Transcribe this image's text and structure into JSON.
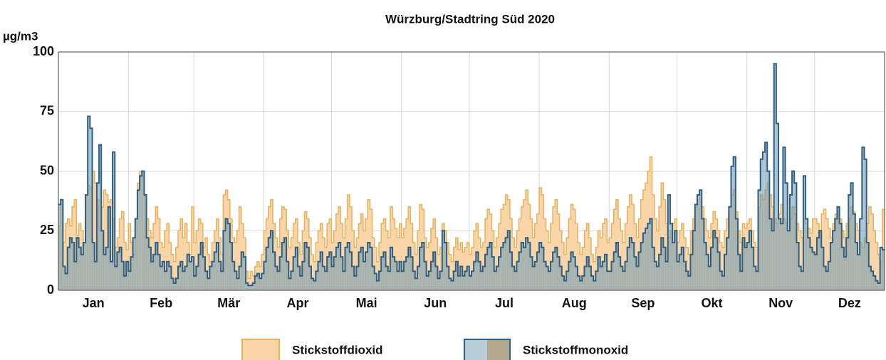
{
  "chart_data": {
    "type": "step-area",
    "title": "Würzburg/Stadtring Süd 2020",
    "y_unit": "µg/m3",
    "xlim": [
      0,
      366
    ],
    "xticks": [
      {
        "value": 0,
        "label": "Jan"
      },
      {
        "value": 31,
        "label": "Feb"
      },
      {
        "value": 60,
        "label": "Mär"
      },
      {
        "value": 91,
        "label": "Apr"
      },
      {
        "value": 121,
        "label": "Mai"
      },
      {
        "value": 152,
        "label": "Jun"
      },
      {
        "value": 182,
        "label": "Jul"
      },
      {
        "value": 213,
        "label": "Aug"
      },
      {
        "value": 244,
        "label": "Sep"
      },
      {
        "value": 274,
        "label": "Okt"
      },
      {
        "value": 305,
        "label": "Nov"
      },
      {
        "value": 335,
        "label": "Dez"
      }
    ],
    "ylim": [
      0,
      100
    ],
    "yticks": [
      0,
      25,
      50,
      75,
      100
    ],
    "grid": true,
    "legend": "bottom",
    "series": [
      {
        "name": "Stickstoffdioxid",
        "color": "#f9d5a8",
        "line_color": "#e6b25c",
        "values": [
          27,
          38,
          20,
          28,
          30,
          27,
          35,
          38,
          23,
          28,
          25,
          20,
          40,
          44,
          43,
          50,
          45,
          38,
          25,
          35,
          42,
          40,
          37,
          38,
          30,
          18,
          22,
          30,
          33,
          20,
          17,
          28,
          20,
          15,
          30,
          45,
          50,
          48,
          40,
          30,
          25,
          22,
          28,
          35,
          30,
          20,
          18,
          25,
          28,
          20,
          15,
          12,
          18,
          25,
          30,
          22,
          28,
          20,
          15,
          35,
          20,
          25,
          30,
          28,
          18,
          22,
          15,
          12,
          20,
          25,
          30,
          22,
          15,
          40,
          42,
          38,
          30,
          22,
          20,
          25,
          35,
          28,
          22,
          8,
          5,
          8,
          6,
          10,
          12,
          10,
          15,
          25,
          30,
          35,
          38,
          28,
          22,
          18,
          30,
          35,
          34,
          25,
          18,
          22,
          28,
          30,
          20,
          15,
          25,
          33,
          30,
          22,
          15,
          12,
          20,
          25,
          28,
          22,
          18,
          28,
          30,
          20,
          25,
          32,
          35,
          28,
          22,
          30,
          40,
          35,
          25,
          18,
          22,
          28,
          32,
          25,
          30,
          38,
          34,
          22,
          18,
          12,
          20,
          28,
          30,
          25,
          22,
          35,
          30,
          26,
          22,
          28,
          22,
          26,
          30,
          35,
          28,
          20,
          15,
          25,
          36,
          34,
          22,
          18,
          20,
          26,
          30,
          22,
          15,
          18,
          28,
          25,
          20,
          15,
          12,
          18,
          22,
          17,
          20,
          16,
          18,
          20,
          15,
          18,
          25,
          28,
          22,
          18,
          20,
          30,
          34,
          32,
          25,
          18,
          22,
          28,
          34,
          36,
          40,
          38,
          30,
          22,
          18,
          25,
          30,
          35,
          38,
          42,
          36,
          30,
          22,
          28,
          32,
          43,
          40,
          30,
          25,
          20,
          28,
          35,
          38,
          32,
          25,
          20,
          15,
          22,
          30,
          36,
          34,
          28,
          20,
          15,
          18,
          25,
          28,
          22,
          15,
          12,
          18,
          25,
          22,
          28,
          30,
          20,
          22,
          28,
          34,
          38,
          30,
          25,
          20,
          28,
          35,
          40,
          36,
          28,
          22,
          30,
          38,
          42,
          45,
          50,
          56,
          40,
          30,
          25,
          35,
          45,
          38,
          28,
          22,
          25,
          28,
          30,
          20,
          25,
          28,
          22,
          18,
          15,
          25,
          30,
          35,
          38,
          40,
          35,
          30,
          25,
          22,
          28,
          33,
          30,
          25,
          20,
          18,
          25,
          30,
          35,
          40,
          42,
          33,
          25,
          20,
          28,
          26,
          28,
          30,
          25,
          20,
          18,
          35,
          40,
          38,
          42,
          45,
          40,
          35,
          30,
          28,
          32,
          36,
          30,
          28,
          25,
          30,
          35,
          32,
          28,
          25,
          22,
          30,
          28,
          26,
          24,
          30,
          30,
          28,
          25,
          32,
          34,
          30,
          26,
          22,
          28,
          32,
          35,
          30,
          25,
          22,
          28,
          30,
          35,
          33,
          28,
          25,
          20,
          18,
          22,
          28,
          35,
          32,
          25,
          20,
          15,
          12,
          34
        ]
      },
      {
        "name": "Stickstoffmonoxid",
        "color": "#6f9bb5",
        "line_color": "#2d5f84",
        "values": [
          36,
          38,
          10,
          7,
          18,
          22,
          20,
          12,
          22,
          18,
          15,
          20,
          40,
          73,
          68,
          20,
          12,
          45,
          61,
          25,
          15,
          18,
          35,
          12,
          58,
          10,
          16,
          18,
          12,
          6,
          12,
          8,
          14,
          22,
          30,
          42,
          48,
          50,
          40,
          22,
          18,
          12,
          15,
          20,
          15,
          10,
          12,
          8,
          12,
          10,
          5,
          3,
          5,
          10,
          12,
          8,
          10,
          15,
          12,
          14,
          6,
          10,
          15,
          20,
          14,
          8,
          5,
          10,
          12,
          16,
          20,
          12,
          8,
          25,
          30,
          28,
          20,
          12,
          8,
          5,
          10,
          16,
          14,
          3,
          2,
          2,
          3,
          6,
          7,
          5,
          7,
          12,
          18,
          22,
          25,
          16,
          10,
          8,
          14,
          20,
          22,
          12,
          5,
          8,
          14,
          18,
          10,
          6,
          12,
          20,
          18,
          10,
          5,
          4,
          8,
          12,
          16,
          10,
          8,
          14,
          16,
          10,
          14,
          18,
          20,
          14,
          8,
          18,
          20,
          16,
          10,
          6,
          10,
          16,
          18,
          12,
          16,
          20,
          18,
          10,
          7,
          4,
          8,
          14,
          16,
          10,
          8,
          18,
          14,
          12,
          8,
          12,
          8,
          12,
          14,
          18,
          14,
          8,
          5,
          10,
          18,
          20,
          12,
          6,
          8,
          12,
          16,
          10,
          5,
          8,
          25,
          20,
          10,
          5,
          4,
          8,
          12,
          6,
          10,
          6,
          8,
          10,
          6,
          8,
          12,
          16,
          12,
          8,
          10,
          15,
          18,
          20,
          14,
          8,
          10,
          14,
          18,
          20,
          22,
          25,
          16,
          10,
          8,
          12,
          16,
          20,
          18,
          22,
          20,
          14,
          10,
          12,
          16,
          20,
          18,
          12,
          10,
          8,
          12,
          16,
          18,
          14,
          10,
          6,
          4,
          8,
          12,
          16,
          14,
          10,
          6,
          4,
          6,
          10,
          14,
          10,
          6,
          4,
          8,
          14,
          10,
          12,
          15,
          8,
          8,
          12,
          16,
          20,
          14,
          10,
          8,
          12,
          18,
          22,
          20,
          14,
          10,
          16,
          20,
          24,
          26,
          28,
          30,
          18,
          12,
          10,
          15,
          22,
          18,
          12,
          40,
          28,
          20,
          25,
          12,
          15,
          18,
          12,
          8,
          6,
          15,
          25,
          36,
          40,
          42,
          30,
          20,
          15,
          10,
          18,
          25,
          22,
          16,
          8,
          6,
          15,
          22,
          35,
          52,
          56,
          30,
          15,
          8,
          22,
          18,
          20,
          25,
          18,
          10,
          8,
          42,
          55,
          58,
          62,
          50,
          30,
          25,
          95,
          70,
          30,
          28,
          60,
          45,
          25,
          40,
          50,
          45,
          20,
          10,
          8,
          48,
          30,
          22,
          18,
          16,
          15,
          22,
          25,
          18,
          10,
          8,
          12,
          20,
          25,
          30,
          35,
          28,
          18,
          14,
          22,
          40,
          45,
          32,
          20,
          15,
          30,
          60,
          55,
          20,
          10,
          8,
          6,
          4,
          3,
          18,
          17
        ]
      }
    ]
  }
}
